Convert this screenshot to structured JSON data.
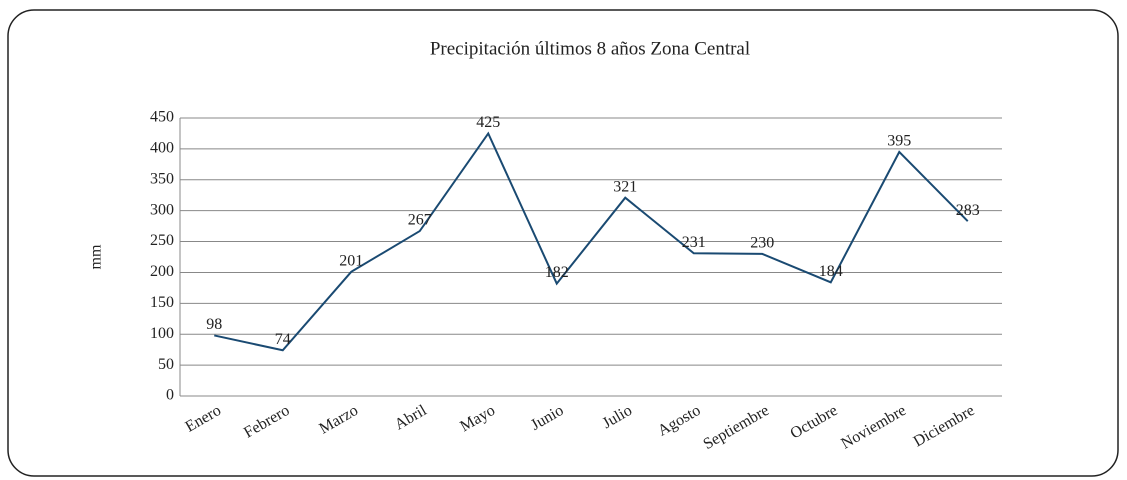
{
  "chart_data": {
    "type": "line",
    "title": "Precipitación últimos 8 años Zona Central",
    "y_label": "mm",
    "categories": [
      "Enero",
      "Febrero",
      "Marzo",
      "Abril",
      "Mayo",
      "Junio",
      "Julio",
      "Agosto",
      "Septiembre",
      "Octubre",
      "Noviembre",
      "Diciembre"
    ],
    "values": [
      98,
      74,
      201,
      267,
      425,
      182,
      321,
      231,
      230,
      184,
      395,
      283
    ],
    "color": "#1a4a72",
    "ylim": [
      0,
      450
    ],
    "yticks": [
      0,
      50,
      100,
      150,
      200,
      250,
      300,
      350,
      400,
      450
    ],
    "grid": true
  }
}
